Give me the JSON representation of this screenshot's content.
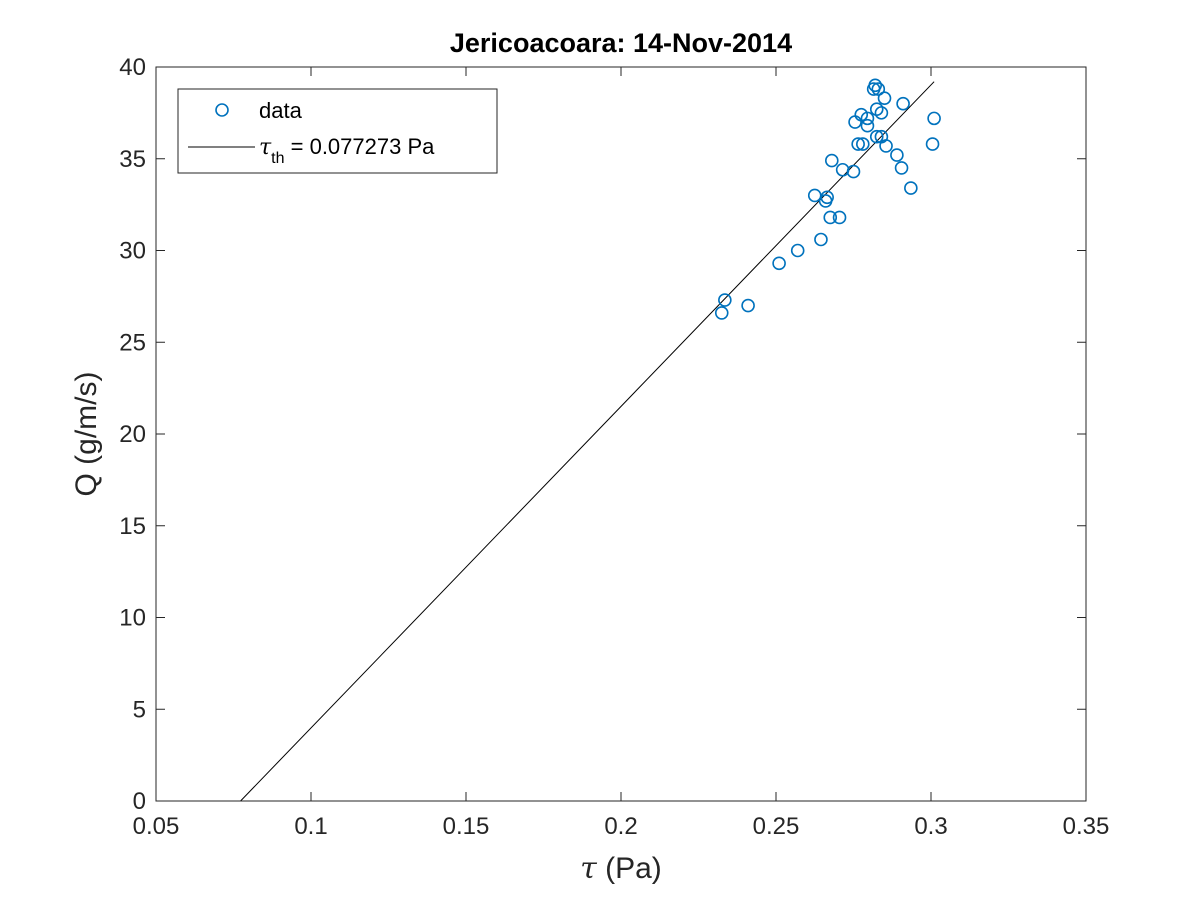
{
  "chart_data": {
    "type": "scatter",
    "title": "Jericoacoara: 14-Nov-2014",
    "xlabel_symbol": "τ",
    "xlabel_unit": "(Pa)",
    "ylabel": "Q (g/m/s)",
    "xlim": [
      0.05,
      0.35
    ],
    "ylim": [
      0,
      40
    ],
    "xticks": [
      0.05,
      0.1,
      0.15,
      0.2,
      0.25,
      0.3,
      0.35
    ],
    "xtick_labels": [
      "0.05",
      "0.1",
      "0.15",
      "0.2",
      "0.25",
      "0.3",
      "0.35"
    ],
    "yticks": [
      0,
      5,
      10,
      15,
      20,
      25,
      30,
      35,
      40
    ],
    "ytick_labels": [
      "0",
      "5",
      "10",
      "15",
      "20",
      "25",
      "30",
      "35",
      "40"
    ],
    "grid": false,
    "legend_position": "top-left",
    "series": [
      {
        "name": "data",
        "kind": "scatter",
        "marker": "circle-open",
        "color": "#0072BD",
        "points": [
          [
            0.2325,
            26.6
          ],
          [
            0.2335,
            27.3
          ],
          [
            0.241,
            27.0
          ],
          [
            0.251,
            29.3
          ],
          [
            0.257,
            30.0
          ],
          [
            0.2645,
            30.6
          ],
          [
            0.2625,
            33.0
          ],
          [
            0.266,
            32.7
          ],
          [
            0.2665,
            32.9
          ],
          [
            0.2675,
            31.8
          ],
          [
            0.2705,
            31.8
          ],
          [
            0.268,
            34.9
          ],
          [
            0.2715,
            34.4
          ],
          [
            0.275,
            34.3
          ],
          [
            0.2755,
            37.0
          ],
          [
            0.2765,
            35.8
          ],
          [
            0.278,
            35.8
          ],
          [
            0.2775,
            37.4
          ],
          [
            0.2795,
            36.8
          ],
          [
            0.2795,
            37.2
          ],
          [
            0.2815,
            38.8
          ],
          [
            0.282,
            39.0
          ],
          [
            0.283,
            38.8
          ],
          [
            0.2825,
            37.7
          ],
          [
            0.2825,
            36.2
          ],
          [
            0.284,
            36.2
          ],
          [
            0.284,
            37.5
          ],
          [
            0.285,
            38.3
          ],
          [
            0.2855,
            35.7
          ],
          [
            0.289,
            35.2
          ],
          [
            0.2905,
            34.5
          ],
          [
            0.291,
            38.0
          ],
          [
            0.2935,
            33.4
          ],
          [
            0.3005,
            35.8
          ],
          [
            0.301,
            37.2
          ]
        ]
      },
      {
        "name_prefix": "τ",
        "name_subscript": "th",
        "name_suffix": " = 0.077273 Pa",
        "kind": "line",
        "color": "#000000",
        "points": [
          [
            0.077273,
            0
          ],
          [
            0.301,
            39.2
          ]
        ]
      }
    ]
  }
}
